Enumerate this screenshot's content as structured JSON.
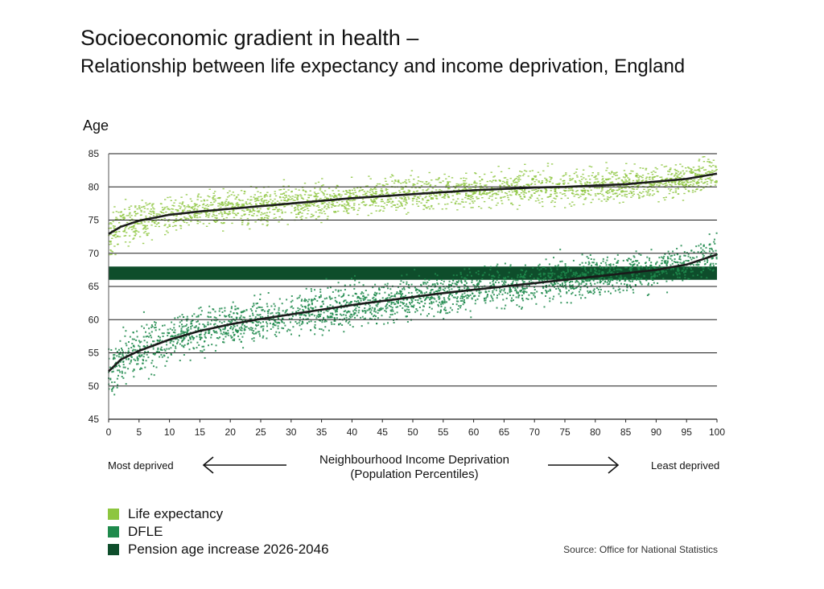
{
  "header": {
    "title": "Socioeconomic gradient in health –",
    "subtitle": "Relationship between life expectancy and income deprivation, England"
  },
  "x_caption": {
    "line1": "Neighbourhood Income Deprivation",
    "line2": "(Population Percentiles)"
  },
  "ends": {
    "left": "Most deprived",
    "right": "Least deprived"
  },
  "legend": [
    {
      "label": "Life expectancy",
      "color": "#8dc63f"
    },
    {
      "label": "DFLE",
      "color": "#1f8a4c"
    },
    {
      "label": "Pension age increase 2026-2046",
      "color": "#0e4d2b"
    }
  ],
  "source": "Source: Office for National Statistics",
  "colors": {
    "le_points": "#8dc63f",
    "dfle_points": "#1f8a4c",
    "pension_band": "#0e4d2b",
    "trend": "#1a1a1a",
    "grid": "#1a1a1a"
  },
  "chart_data": {
    "type": "scatter",
    "ylabel": "Age",
    "xlabel": "",
    "xlim": [
      0,
      100
    ],
    "ylim": [
      45,
      85
    ],
    "x_ticks": [
      0,
      5,
      10,
      15,
      20,
      25,
      30,
      35,
      40,
      45,
      50,
      55,
      60,
      65,
      70,
      75,
      80,
      85,
      90,
      95,
      100
    ],
    "y_ticks": [
      45,
      50,
      55,
      60,
      65,
      70,
      75,
      80,
      85
    ],
    "grid": "horizontal",
    "series": [
      {
        "name": "Life expectancy",
        "trend": {
          "x": [
            0,
            2,
            5,
            10,
            15,
            20,
            25,
            30,
            35,
            40,
            45,
            50,
            55,
            60,
            65,
            70,
            75,
            80,
            85,
            90,
            95,
            100
          ],
          "y": [
            72.9,
            74.0,
            74.9,
            75.8,
            76.3,
            76.7,
            77.1,
            77.5,
            77.9,
            78.3,
            78.6,
            78.9,
            79.2,
            79.5,
            79.7,
            79.9,
            80.0,
            80.2,
            80.4,
            80.8,
            81.2,
            82.0
          ]
        },
        "scatter_spread": 1.8
      },
      {
        "name": "DFLE",
        "trend": {
          "x": [
            0,
            2,
            5,
            10,
            15,
            20,
            25,
            30,
            35,
            40,
            45,
            50,
            55,
            60,
            65,
            70,
            75,
            80,
            85,
            90,
            95,
            100
          ],
          "y": [
            52.2,
            54.0,
            55.3,
            57.0,
            58.3,
            59.3,
            60.1,
            60.8,
            61.5,
            62.2,
            62.8,
            63.4,
            64.0,
            64.5,
            65.0,
            65.5,
            66.0,
            66.5,
            67.0,
            67.5,
            68.3,
            69.8
          ]
        },
        "scatter_spread": 2.2
      }
    ],
    "band": {
      "name": "Pension age increase 2026-2046",
      "x": [
        0,
        100
      ],
      "y": [
        66,
        68
      ]
    }
  }
}
